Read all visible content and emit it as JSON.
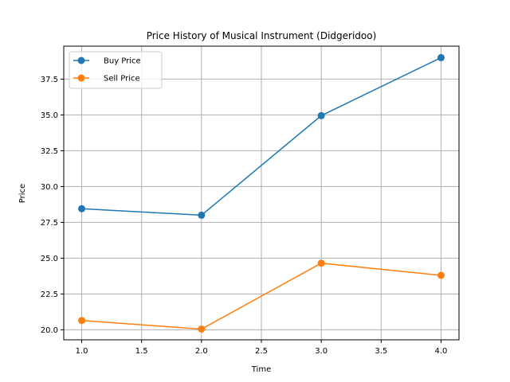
{
  "chart_data": {
    "type": "line",
    "title": "Price History of Musical Instrument (Didgeridoo)",
    "xlabel": "Time",
    "ylabel": "Price",
    "x": [
      1,
      2,
      3,
      4
    ],
    "xlim": [
      0.85,
      4.15
    ],
    "ylim": [
      19.3,
      39.8
    ],
    "xticks": [
      1.0,
      1.5,
      2.0,
      2.5,
      3.0,
      3.5,
      4.0
    ],
    "yticks": [
      20.0,
      22.5,
      25.0,
      27.5,
      30.0,
      32.5,
      35.0,
      37.5
    ],
    "grid": true,
    "legend_position": "top-left",
    "series": [
      {
        "name": "Buy Price",
        "color": "#1f77b4",
        "values": [
          28.45,
          28.0,
          34.95,
          39.0
        ],
        "marker": "circle"
      },
      {
        "name": "Sell Price",
        "color": "#ff7f0e",
        "values": [
          20.65,
          20.05,
          24.65,
          23.8
        ],
        "marker": "circle"
      }
    ]
  }
}
